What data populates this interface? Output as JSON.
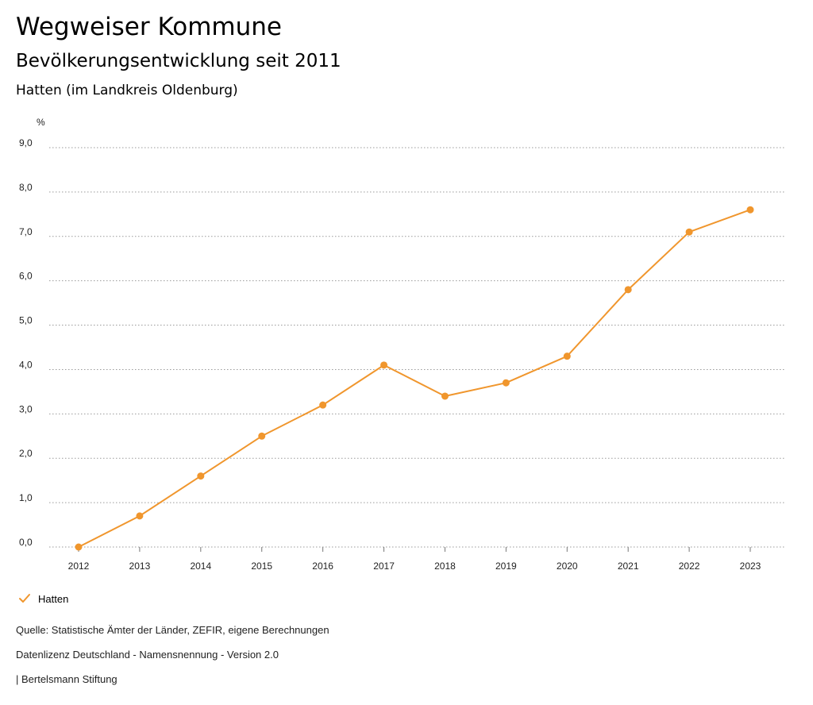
{
  "header": {
    "title": "Wegweiser Kommune",
    "subtitle": "Bevölkerungsentwicklung seit 2011",
    "region": "Hatten (im Landkreis Oldenburg)"
  },
  "chart_data": {
    "type": "line",
    "unit_label": "%",
    "x": [
      "2012",
      "2013",
      "2014",
      "2015",
      "2016",
      "2017",
      "2018",
      "2019",
      "2020",
      "2021",
      "2022",
      "2023"
    ],
    "series": [
      {
        "name": "Hatten",
        "color": "#f0962d",
        "values": [
          0.0,
          0.7,
          1.6,
          2.5,
          3.2,
          4.1,
          3.4,
          3.7,
          4.3,
          5.8,
          7.1,
          7.6
        ]
      }
    ],
    "yticks": [
      "0,0",
      "1,0",
      "2,0",
      "3,0",
      "4,0",
      "5,0",
      "6,0",
      "7,0",
      "8,0",
      "9,0"
    ],
    "ylim": [
      0,
      9
    ],
    "grid": true,
    "legend_position": "bottom-left"
  },
  "legend": {
    "label": "Hatten"
  },
  "footer": {
    "source": "Quelle: Statistische Ämter der Länder, ZEFIR, eigene Berechnungen",
    "license": "Datenlizenz Deutschland - Namensnennung - Version 2.0",
    "publisher": "| Bertelsmann Stiftung"
  }
}
